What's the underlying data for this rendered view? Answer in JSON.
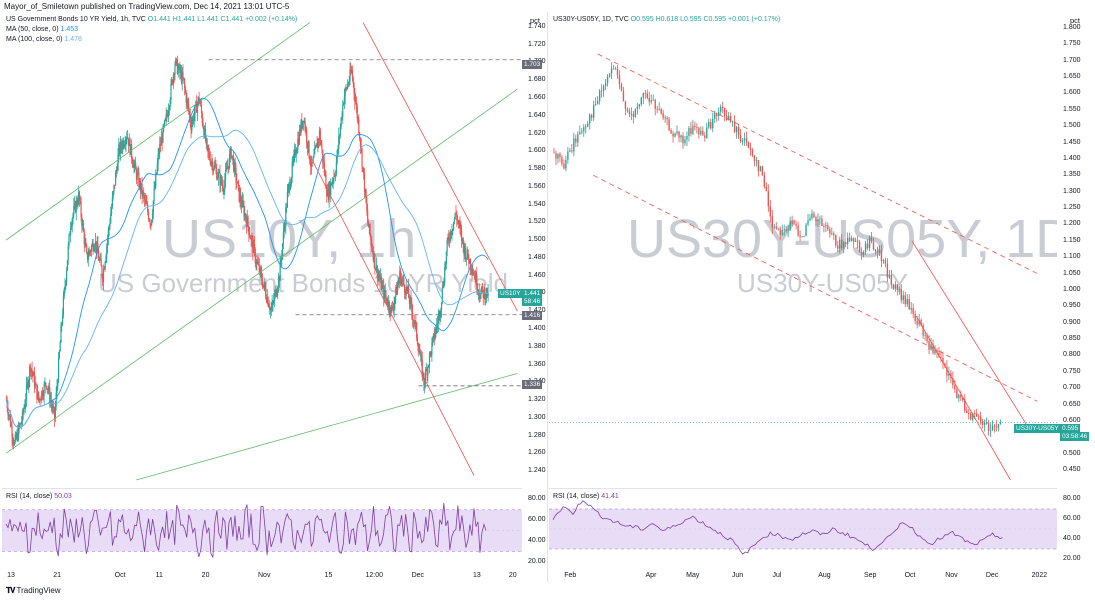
{
  "header": {
    "text": "Mayor_of_Smiletown published on TradingView.com, Dec 14, 2021 13:01 UTC-5"
  },
  "left": {
    "legend": {
      "line1_key": "US Government Bonds 10 YR Yield, 1h, TVC",
      "line1_vals": "O1.441  H1.441  L1.441  C1.441  +0.002 (+0.14%)",
      "line2_key": "MA (50, close, 0)",
      "line2_val": "1.453",
      "line3_key": "MA (100, close, 0)",
      "line3_val": "1.478"
    },
    "watermark_big": "US10Y, 1h",
    "watermark_small": "US Government Bonds 10 YR Yield",
    "axis_unit": "pct",
    "tags": {
      "high": "1.703",
      "current_name": "US10Y",
      "current_value": "1.441",
      "countdown": "58:46",
      "mid": "1.416",
      "low": "1.336"
    },
    "rsi_legend": "RSI (14, close)",
    "rsi_value": "50.03",
    "rsi_ticks": [
      "80.00",
      "60.00",
      "40.00",
      "20.00"
    ],
    "x_ticks": [
      "13",
      "21",
      "Oct",
      "11",
      "20",
      "Nov",
      "15",
      "12:00",
      "Dec",
      "13",
      "20"
    ]
  },
  "right": {
    "legend": {
      "key": "US30Y-US05Y, 1D, TVC",
      "vals": "O0.595  H0.618  L0.595  C0.595  +0.001 (+0.17%)"
    },
    "watermark_big": "US30Y-US05Y, 1D",
    "watermark_small": "US30Y-US05Y",
    "axis_unit": "pct",
    "tags": {
      "current_name": "US30Y-US05Y",
      "current_value": "0.595",
      "countdown": "03:58:46"
    },
    "rsi_legend": "RSI (14, close)",
    "rsi_value": "41.41",
    "rsi_ticks": [
      "80.00",
      "60.00",
      "40.00",
      "20.00"
    ],
    "x_ticks": [
      "Feb",
      "Apr",
      "May",
      "Jun",
      "Jul",
      "Aug",
      "Sep",
      "Oct",
      "Nov",
      "Dec",
      "2022"
    ]
  },
  "footer": {
    "brand": "TradingView"
  },
  "colors": {
    "up": "#26a69a",
    "down": "#ef5350",
    "ma50": "#2196f3",
    "ma100": "#64b5f6",
    "trend_green": "#66bb6a",
    "trend_red": "#ef5350",
    "rsi": "#7e3fa6",
    "rsi_band": "#e9dcf6"
  },
  "chart_data": [
    {
      "type": "candlestick",
      "title": "US Government Bonds 10 YR Yield, 1h",
      "ylabel": "pct",
      "ylim": [
        1.23,
        1.75
      ],
      "y_ticks": [
        "1.740",
        "1.720",
        "1.700",
        "1.680",
        "1.660",
        "1.640",
        "1.620",
        "1.600",
        "1.580",
        "1.560",
        "1.540",
        "1.520",
        "1.500",
        "1.480",
        "1.460",
        "1.440",
        "1.420",
        "1.400",
        "1.380",
        "1.360",
        "1.340",
        "1.320",
        "1.300",
        "1.280",
        "1.260",
        "1.240"
      ],
      "x_ticks": [
        "13",
        "21",
        "Oct",
        "11",
        "20",
        "Nov",
        "15",
        "12:00",
        "Dec",
        "13",
        "20"
      ],
      "close_path": [
        1.32,
        1.27,
        1.3,
        1.36,
        1.32,
        1.34,
        1.3,
        1.42,
        1.52,
        1.55,
        1.48,
        1.5,
        1.46,
        1.53,
        1.6,
        1.62,
        1.58,
        1.55,
        1.52,
        1.6,
        1.64,
        1.7,
        1.68,
        1.63,
        1.66,
        1.6,
        1.58,
        1.56,
        1.6,
        1.55,
        1.52,
        1.48,
        1.45,
        1.42,
        1.46,
        1.55,
        1.6,
        1.64,
        1.58,
        1.62,
        1.55,
        1.58,
        1.66,
        1.69,
        1.62,
        1.52,
        1.47,
        1.44,
        1.42,
        1.46,
        1.44,
        1.4,
        1.34,
        1.38,
        1.42,
        1.5,
        1.53,
        1.49,
        1.47,
        1.44,
        1.441
      ],
      "levels": [
        1.703,
        1.416,
        1.336
      ],
      "current": 1.441,
      "ma50_last": 1.453,
      "ma100_last": 1.478
    },
    {
      "type": "line",
      "title": "RSI (14, close)",
      "ylim": [
        15,
        88
      ],
      "y_ticks": [
        "80.00",
        "60.00",
        "40.00",
        "20.00"
      ],
      "band": [
        30,
        70
      ],
      "last": 50.03
    },
    {
      "type": "candlestick",
      "title": "US30Y-US05Y, 1D",
      "ylabel": "pct",
      "ylim": [
        0.42,
        1.83
      ],
      "y_ticks": [
        "1.800",
        "1.750",
        "1.700",
        "1.650",
        "1.600",
        "1.550",
        "1.500",
        "1.450",
        "1.400",
        "1.350",
        "1.300",
        "1.250",
        "1.200",
        "1.150",
        "1.100",
        "1.050",
        "1.000",
        "0.950",
        "0.900",
        "0.850",
        "0.800",
        "0.750",
        "0.700",
        "0.650",
        "0.600",
        "0.550",
        "0.500",
        "0.450"
      ],
      "x_ticks": [
        "Feb",
        "Apr",
        "May",
        "Jun",
        "Jul",
        "Aug",
        "Sep",
        "Oct",
        "Nov",
        "Dec",
        "2022"
      ],
      "close_path": [
        1.42,
        1.38,
        1.45,
        1.5,
        1.55,
        1.62,
        1.68,
        1.58,
        1.52,
        1.6,
        1.57,
        1.52,
        1.48,
        1.45,
        1.5,
        1.47,
        1.52,
        1.55,
        1.5,
        1.46,
        1.42,
        1.35,
        1.2,
        1.18,
        1.2,
        1.17,
        1.22,
        1.2,
        1.16,
        1.13,
        1.17,
        1.12,
        1.15,
        1.1,
        1.02,
        0.98,
        0.94,
        0.88,
        0.82,
        0.78,
        0.72,
        0.66,
        0.62,
        0.6,
        0.58,
        0.595
      ],
      "current": 0.595
    },
    {
      "type": "line",
      "title": "RSI (14, close)",
      "ylim": [
        12,
        88
      ],
      "y_ticks": [
        "80.00",
        "60.00",
        "40.00",
        "20.00"
      ],
      "band": [
        30,
        70
      ],
      "last": 41.41
    }
  ]
}
